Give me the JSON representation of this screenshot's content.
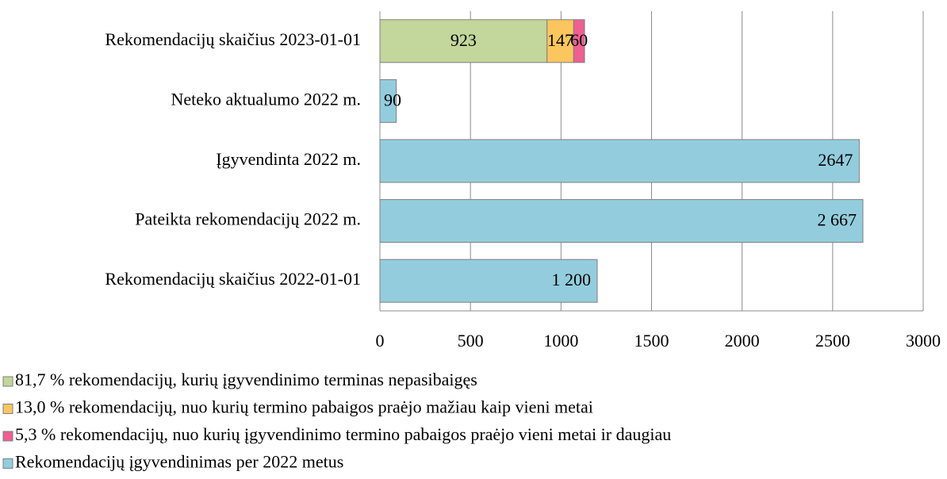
{
  "chart_data": {
    "type": "bar",
    "orientation": "horizontal",
    "stacked": true,
    "categories": [
      "Rekomendacijų skaičius 2023-01-01",
      "Neteko aktualumo 2022 m.",
      "Įgyvendinta 2022 m.",
      "Pateikta rekomendacijų 2022 m.",
      "Rekomendacijų skaičius 2022-01-01"
    ],
    "series": [
      {
        "name": "81,7 % rekomendacijų, kurių įgyvendinimo terminas nepasibaigęs",
        "color": "#c3d69b",
        "values": [
          923,
          null,
          null,
          null,
          null
        ]
      },
      {
        "name": "13,0 % rekomendacijų, nuo kurių termino pabaigos praėjo mažiau kaip vieni metai",
        "color": "#fcc65e",
        "values": [
          147,
          null,
          null,
          null,
          null
        ]
      },
      {
        "name": "5,3 % rekomendacijų, nuo kurių įgyvendinimo termino pabaigos praėjo vieni metai ir daugiau",
        "color": "#ee5f92",
        "values": [
          60,
          null,
          null,
          null,
          null
        ]
      },
      {
        "name": "Rekomendacijų įgyvendinimas per 2022 metus",
        "color": "#93cddd",
        "values": [
          null,
          90,
          2647,
          2667,
          1200
        ],
        "value_labels": [
          null,
          "90",
          "2647",
          "2 667",
          "1 200"
        ]
      }
    ],
    "xlim": [
      0,
      3000
    ],
    "xticks": [
      0,
      500,
      1000,
      1500,
      2000,
      2500,
      3000
    ],
    "grid": true,
    "legend": "bottom"
  }
}
